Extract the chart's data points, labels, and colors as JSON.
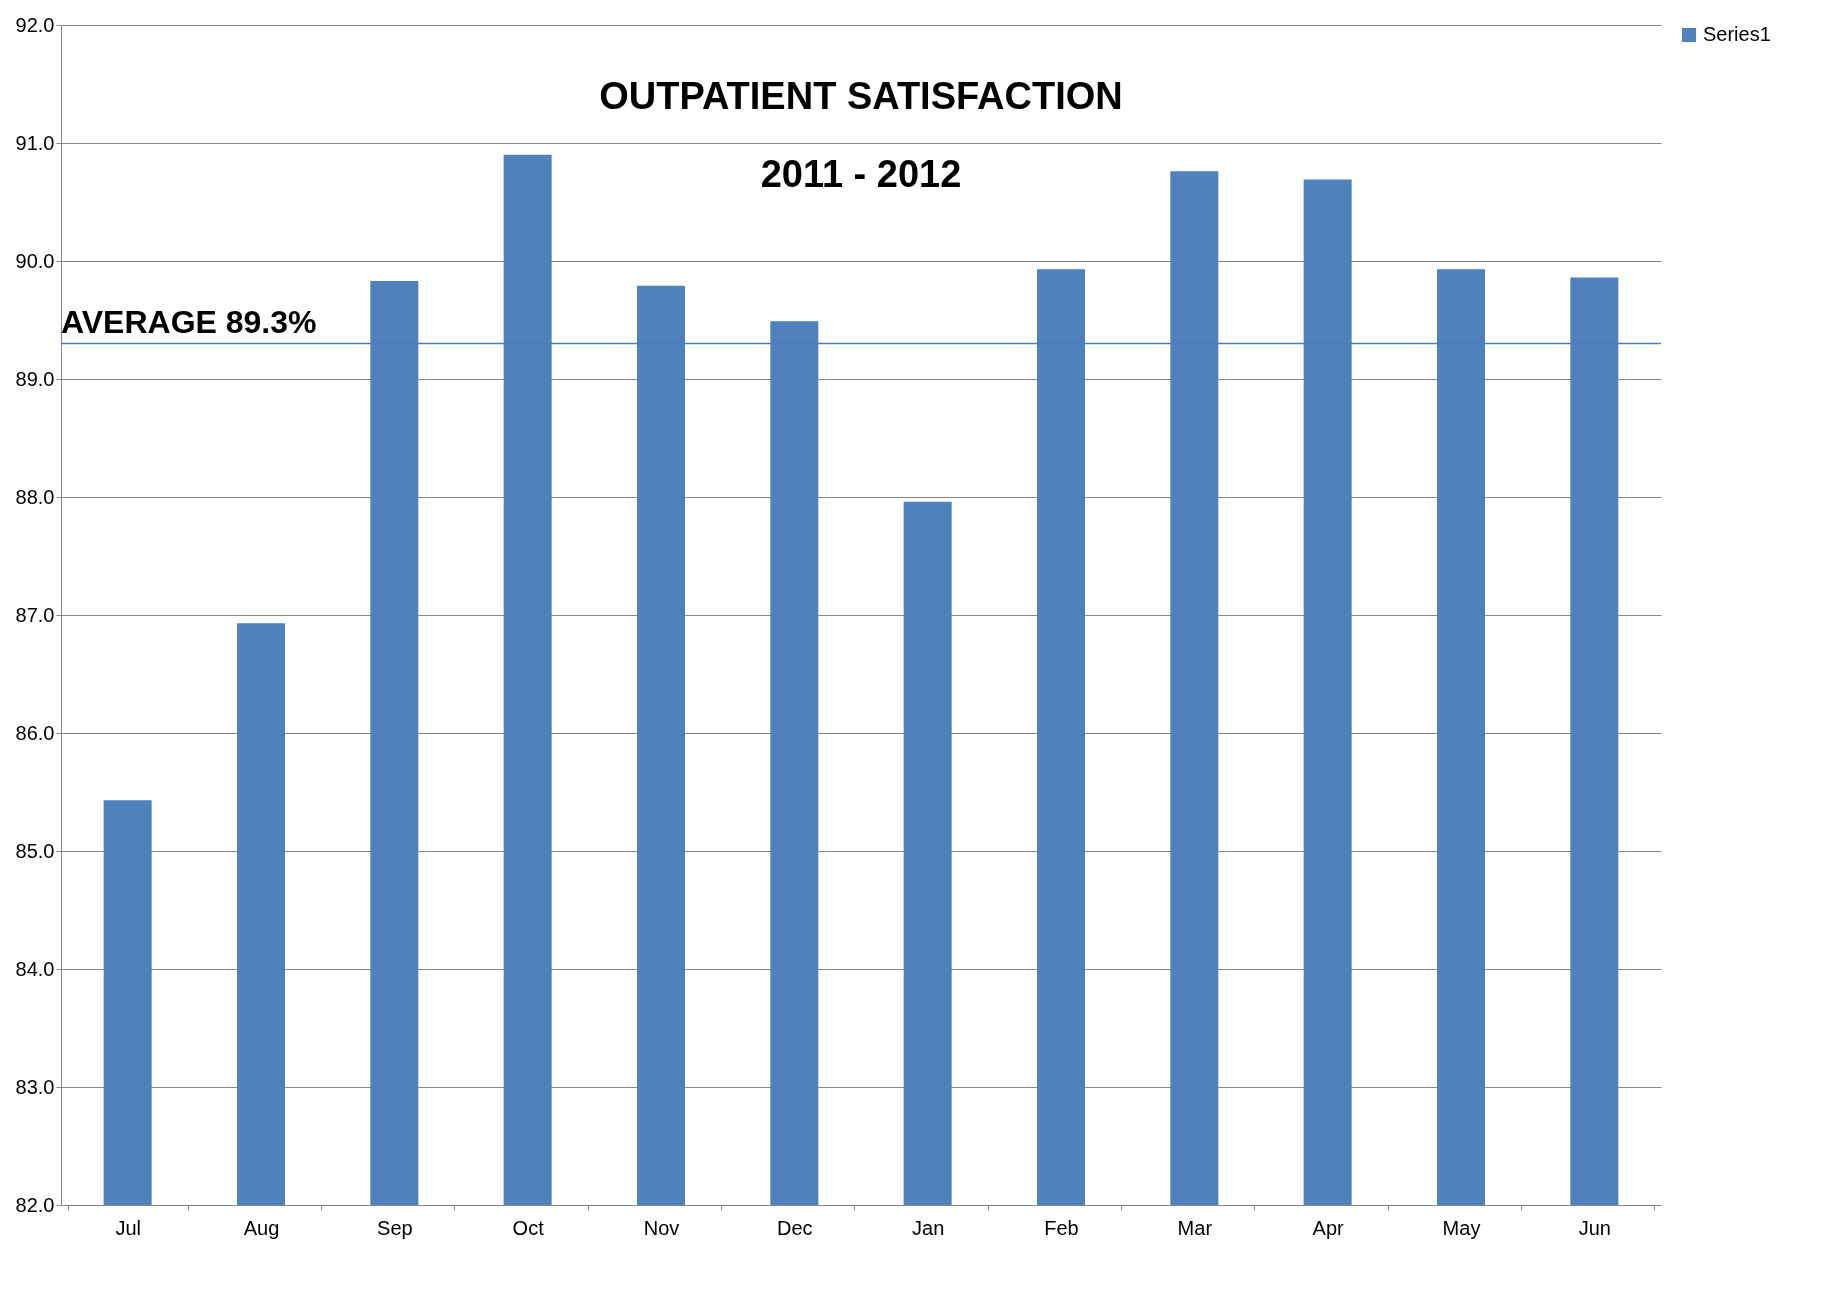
{
  "chart_data": {
    "type": "bar",
    "title": "OUTPATIENT SATISFACTION",
    "subtitle": "2011 - 2012",
    "categories": [
      "Jul",
      "Aug",
      "Sep",
      "Oct",
      "Nov",
      "Dec",
      "Jan",
      "Feb",
      "Mar",
      "Apr",
      "May",
      "Jun"
    ],
    "series": [
      {
        "name": "Series1",
        "color": "#4f81bd",
        "values": [
          85.43,
          86.93,
          89.83,
          90.9,
          89.79,
          89.49,
          87.96,
          89.93,
          90.76,
          90.69,
          89.93,
          89.86
        ]
      }
    ],
    "ylim": [
      82,
      92
    ],
    "yticks": [
      {
        "value": 82,
        "label": "82.0"
      },
      {
        "value": 83,
        "label": "83.0"
      },
      {
        "value": 84,
        "label": "84.0"
      },
      {
        "value": 85,
        "label": "85.0"
      },
      {
        "value": 86,
        "label": "86.0"
      },
      {
        "value": 87,
        "label": "87.0"
      },
      {
        "value": 88,
        "label": "88.0"
      },
      {
        "value": 89,
        "label": "89.0"
      },
      {
        "value": 90,
        "label": "90.0"
      },
      {
        "value": 91,
        "label": "91.0"
      },
      {
        "value": 92,
        "label": "92.0"
      }
    ],
    "ref_lines": [
      {
        "axis": "y",
        "value": 89.3,
        "label": "AVERAGE 89.3%",
        "color": "#4a7ebb"
      }
    ],
    "grid": "y",
    "legend": "right"
  }
}
